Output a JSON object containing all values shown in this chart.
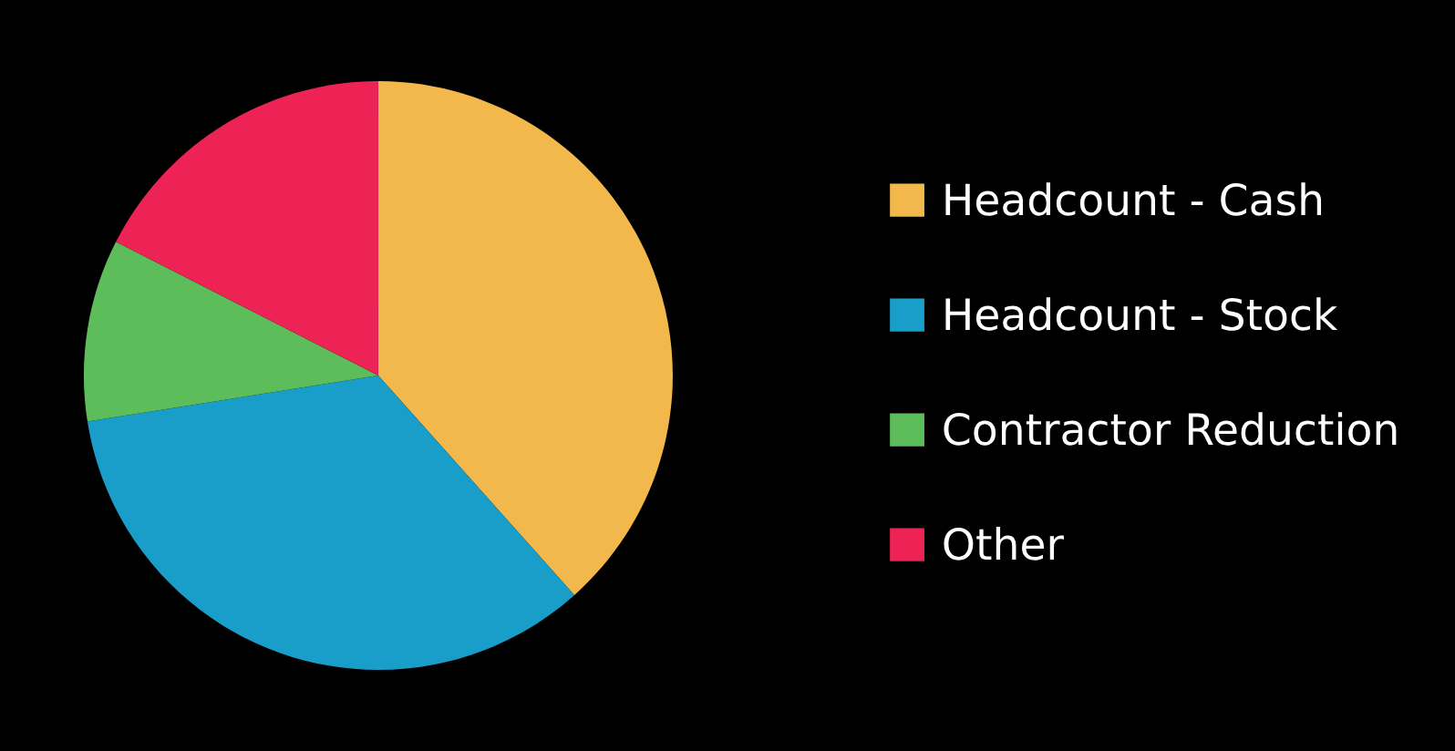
{
  "chart_data": {
    "type": "pie",
    "categories": [
      "Headcount - Cash",
      "Headcount - Stock",
      "Contractor Reduction",
      "Other"
    ],
    "values": [
      38.4,
      34.1,
      10.0,
      17.5
    ],
    "colors": [
      "#f2b84b",
      "#189ec9",
      "#5cbd5a",
      "#ee2355"
    ],
    "legend": "right"
  }
}
